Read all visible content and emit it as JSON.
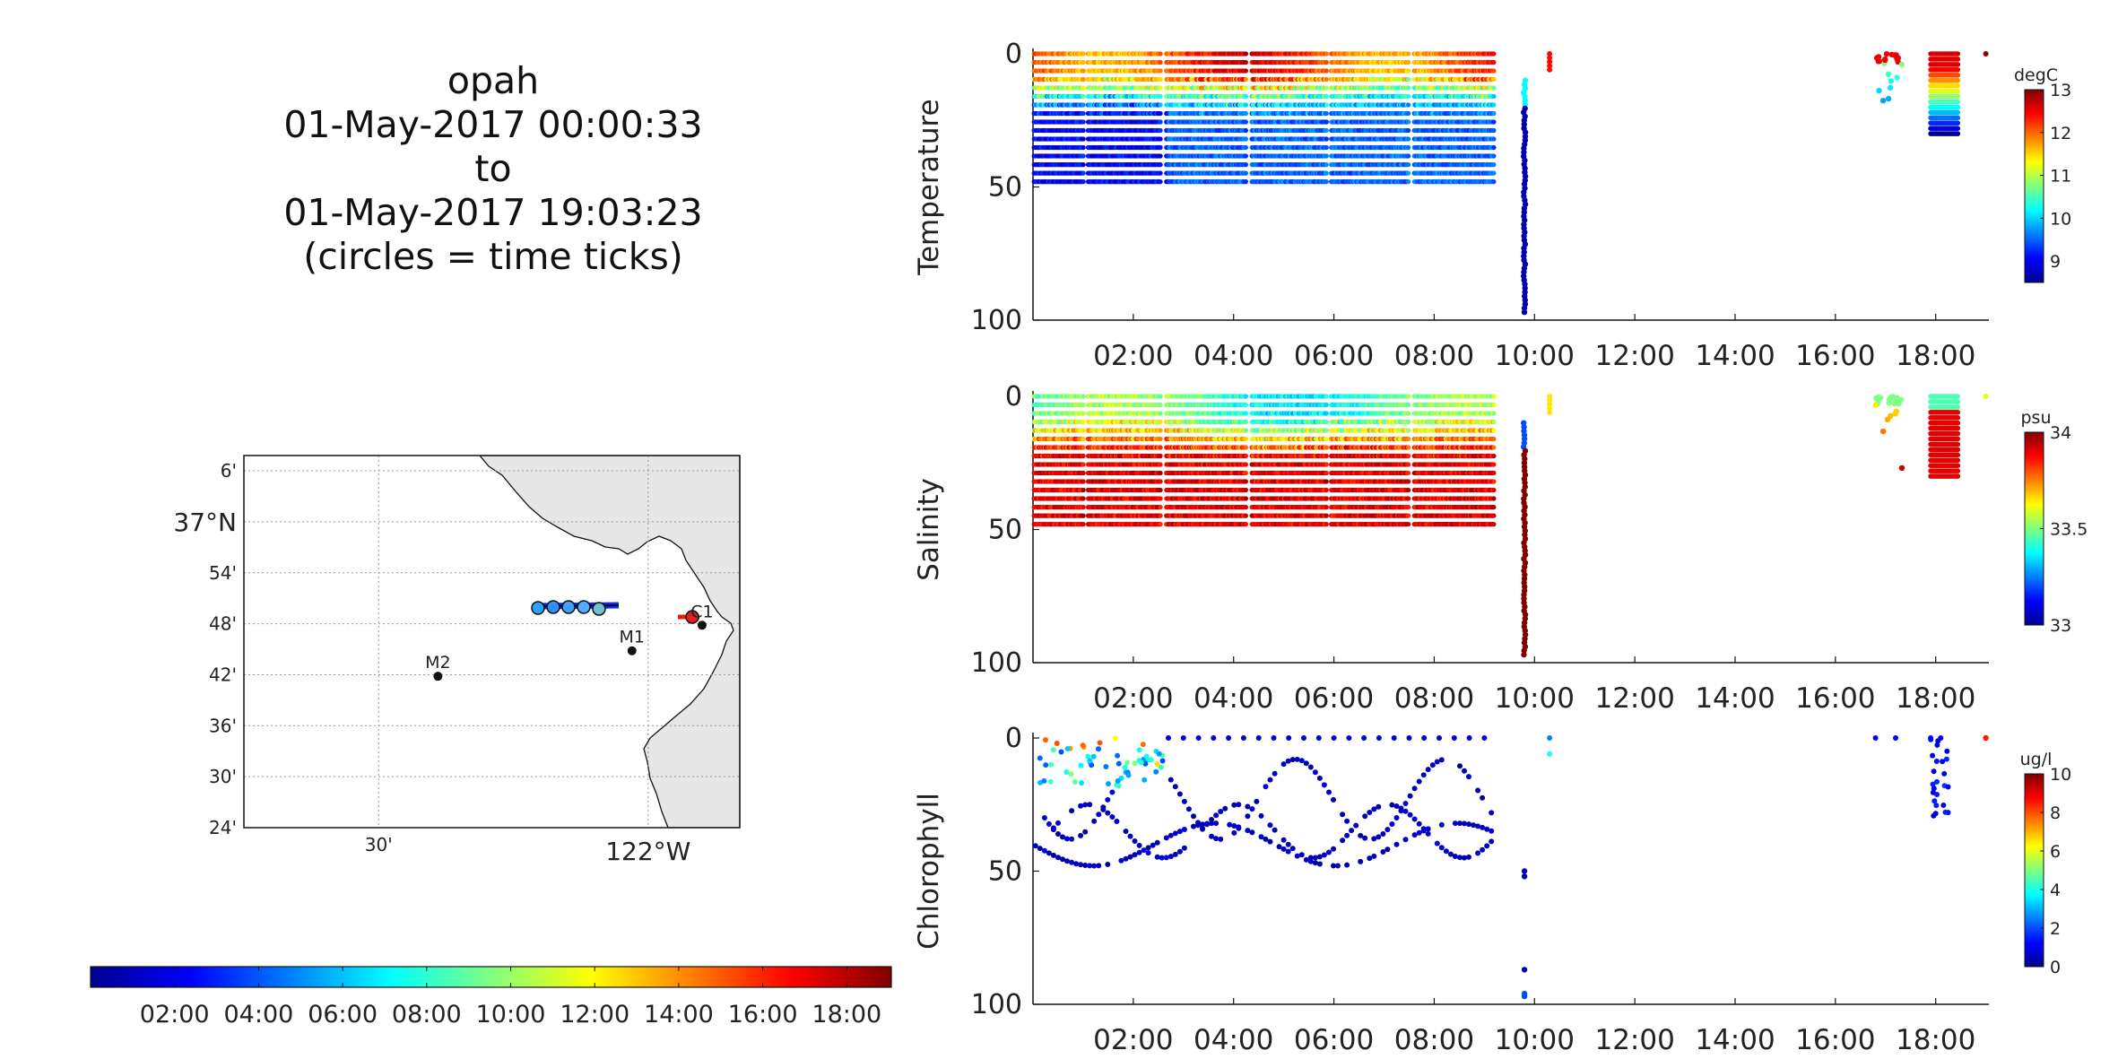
{
  "header": {
    "lines": [
      "opah",
      "01-May-2017 00:00:33",
      "to",
      "01-May-2017 19:03:23",
      "(circles = time ticks)"
    ]
  },
  "colors": {
    "land": "#e6e6e6",
    "track": "#1030d0",
    "grid": "#bbbbbb"
  },
  "map": {
    "lat_tick_labels": [
      "6'",
      "37°N",
      "54'",
      "48'",
      "42'",
      "36'",
      "30'",
      "24'"
    ],
    "lat_tick_values": [
      37.1,
      37.0,
      36.9,
      36.8,
      36.7,
      36.6,
      36.5,
      36.4
    ],
    "lon_tick_labels": [
      "30'",
      "122°W"
    ],
    "lon_tick_values": [
      -122.5,
      -122.0
    ],
    "stations": [
      {
        "name": "M2",
        "lon": -122.39,
        "lat": 36.697
      },
      {
        "name": "M1",
        "lon": -122.03,
        "lat": 36.747
      },
      {
        "name": "C1",
        "lon": -121.9,
        "lat": 36.797
      }
    ]
  },
  "time_colorbar": {
    "tick_labels": [
      "02:00",
      "04:00",
      "06:00",
      "08:00",
      "10:00",
      "12:00",
      "14:00",
      "16:00",
      "18:00"
    ]
  },
  "chart_data": [
    {
      "type": "scatter",
      "ylabel": "Temperature",
      "units": "degC",
      "ylim": [
        100,
        0
      ],
      "yticks": [
        0,
        50,
        100
      ],
      "xlim_hours": [
        0,
        19.06
      ],
      "xtick_labels": [
        "02:00",
        "04:00",
        "06:00",
        "08:00",
        "10:00",
        "12:00",
        "14:00",
        "16:00",
        "18:00"
      ],
      "clim": [
        8.5,
        13
      ],
      "cbar_ticks": [
        9,
        10,
        11,
        12,
        13
      ],
      "max_depth": 50,
      "profiles_end_hour": 9.2,
      "deep_cast": {
        "hour": 9.8,
        "depth": 97
      }
    },
    {
      "type": "scatter",
      "ylabel": "Salinity",
      "units": "psu",
      "ylim": [
        100,
        0
      ],
      "yticks": [
        0,
        50,
        100
      ],
      "xlim_hours": [
        0,
        19.06
      ],
      "xtick_labels": [
        "02:00",
        "04:00",
        "06:00",
        "08:00",
        "10:00",
        "12:00",
        "14:00",
        "16:00",
        "18:00"
      ],
      "clim": [
        33,
        34
      ],
      "cbar_ticks": [
        33,
        33.5,
        34
      ],
      "max_depth": 50,
      "profiles_end_hour": 9.2,
      "deep_cast": {
        "hour": 9.8,
        "depth": 97
      }
    },
    {
      "type": "scatter",
      "ylabel": "Chlorophyll",
      "units": "ug/l",
      "ylim": [
        100,
        0
      ],
      "yticks": [
        0,
        50,
        100
      ],
      "xlim_hours": [
        0,
        19.06
      ],
      "xtick_labels": [
        "02:00",
        "04:00",
        "06:00",
        "08:00",
        "10:00",
        "12:00",
        "14:00",
        "16:00",
        "18:00"
      ],
      "clim": [
        0,
        10
      ],
      "cbar_ticks": [
        0,
        2,
        4,
        6,
        8,
        10
      ],
      "deep_cast": {
        "hour": 9.8,
        "depth": 97
      }
    }
  ]
}
